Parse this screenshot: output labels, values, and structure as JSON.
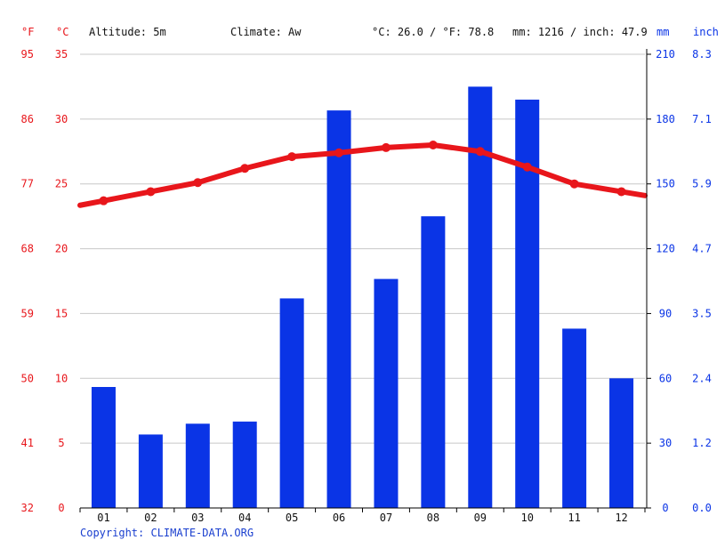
{
  "header": {
    "f_unit": "°F",
    "c_unit": "°C",
    "altitude": "Altitude: 5m",
    "climate": "Climate: Aw",
    "avg_temp": "°C: 26.0 / °F: 78.8",
    "precip_total": "mm: 1216 / inch: 47.9",
    "mm_unit": "mm",
    "inch_unit": "inch"
  },
  "colors": {
    "temperature": "#e8161b",
    "precipitation": "#0a34e6",
    "grid": "#c8c8c8",
    "text": "#111111"
  },
  "axes": {
    "celsius_ticks": [
      "0",
      "5",
      "10",
      "15",
      "20",
      "25",
      "30",
      "35"
    ],
    "fahrenheit_ticks": [
      "32",
      "41",
      "50",
      "59",
      "68",
      "77",
      "86",
      "95"
    ],
    "mm_ticks": [
      "0",
      "30",
      "60",
      "90",
      "120",
      "150",
      "180",
      "210"
    ],
    "inch_ticks": [
      "0.0",
      "1.2",
      "2.4",
      "3.5",
      "4.7",
      "5.9",
      "7.1",
      "8.3"
    ]
  },
  "footer": {
    "copyright": "Copyright: CLIMATE-DATA.ORG"
  },
  "chart_data": {
    "type": "bar",
    "categories": [
      "01",
      "02",
      "03",
      "04",
      "05",
      "06",
      "07",
      "08",
      "09",
      "10",
      "11",
      "12"
    ],
    "series": [
      {
        "type": "bar",
        "axis": "mm",
        "values": [
          56,
          34,
          39,
          40,
          97,
          184,
          106,
          135,
          195,
          189,
          83,
          60
        ]
      },
      {
        "type": "line",
        "axis": "°C",
        "values": [
          23.7,
          24.4,
          25.1,
          26.2,
          27.1,
          27.4,
          27.8,
          28.0,
          27.5,
          26.3,
          25.0,
          24.4
        ]
      }
    ],
    "temperature_ylim": [
      0,
      35
    ],
    "precipitation_ylim": [
      0,
      210
    ],
    "grid": true
  }
}
